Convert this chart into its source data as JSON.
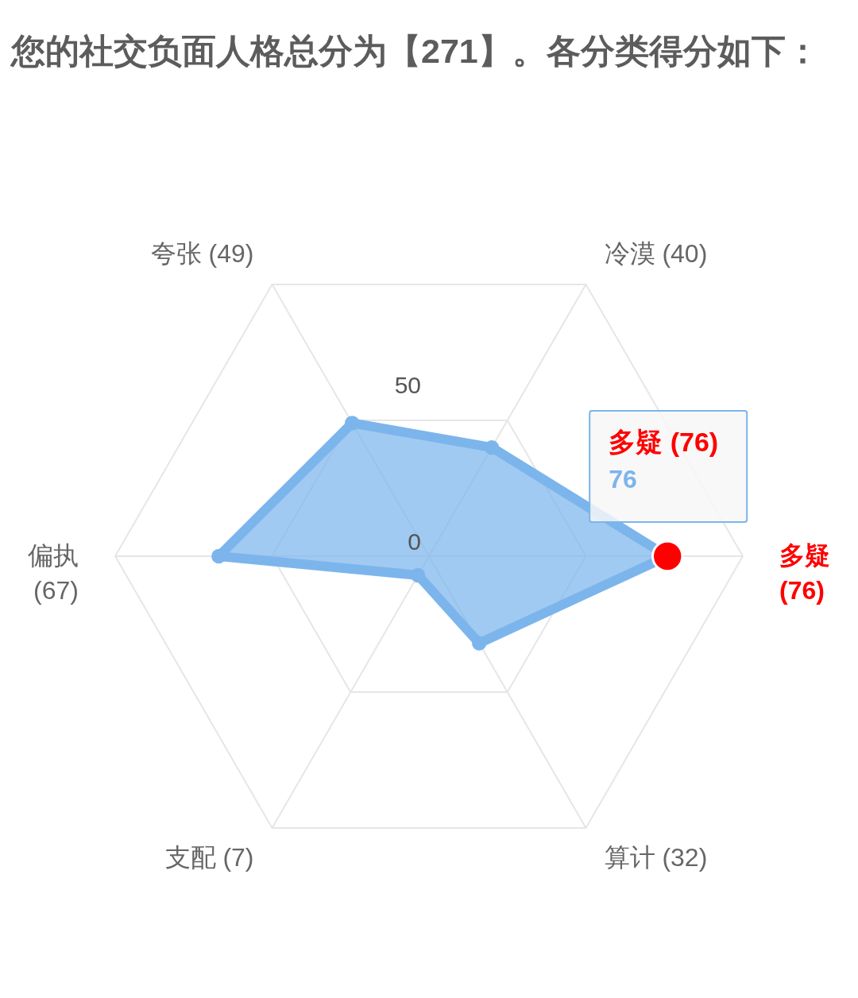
{
  "chart_data": {
    "type": "radar",
    "title": "您的社交负面人格总分为【271】。各分类得分如下：",
    "categories": [
      "冷漠 (40)",
      "多疑 (76)",
      "算计 (32)",
      "支配 (7)",
      "偏执 (67)",
      "夸张 (49)"
    ],
    "series": [
      {
        "color": "#7cb5ec",
        "colors": [
          "#7cb5ec",
          "#ff0000",
          "#7cb5ec",
          "#7cb5ec",
          "#7cb5ec",
          "#7cb5ec"
        ],
        "values": [
          40,
          76,
          32,
          7,
          67,
          49
        ]
      }
    ],
    "ylim": [
      0,
      100
    ],
    "yticks": [
      0,
      50
    ],
    "grid": true,
    "marker": "circle",
    "annotations": [
      {
        "text": "多疑 (76)",
        "x": "多疑 (76)"
      },
      {
        "text": "76",
        "x": "多疑 (76)"
      }
    ]
  }
}
